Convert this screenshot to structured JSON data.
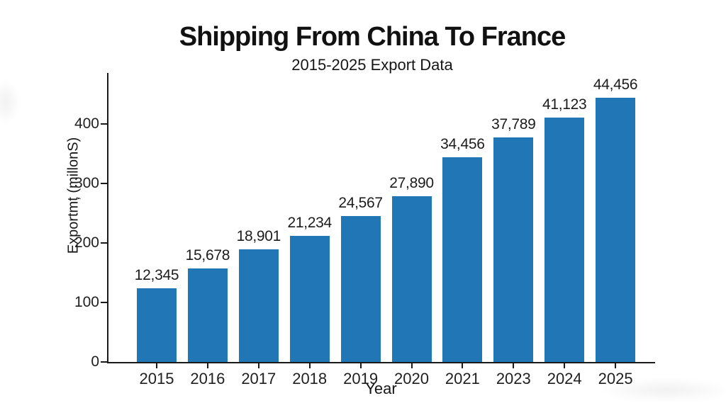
{
  "page": {
    "background": "#ffffff"
  },
  "chart_data": {
    "type": "bar",
    "title": "Shipping From China To France",
    "subtitle": "2015-2025 Export Data",
    "xlabel": "Year",
    "ylabel": "Exportmț (millonS)",
    "categories": [
      "2015",
      "2016",
      "2017",
      "2018",
      "2019",
      "2020",
      "2021",
      "2023",
      "2024",
      "2025"
    ],
    "values": [
      12345,
      15678,
      18901,
      21234,
      24567,
      27890,
      34456,
      37789,
      41123,
      44456
    ],
    "bar_labels": [
      "12,345",
      "15,678",
      "18,901",
      "21,234",
      "24,567",
      "27,890",
      "34,456",
      "37,789",
      "41,123",
      "44,456"
    ],
    "yticks": [
      0,
      100,
      200,
      300,
      400
    ],
    "ylim": [
      0,
      485
    ],
    "value_axis_scale": 100,
    "bar_color": "#2176b5",
    "axis_color": "#1a1a1a",
    "text_color": "#1c1c1c",
    "grid": false,
    "legend": null
  }
}
